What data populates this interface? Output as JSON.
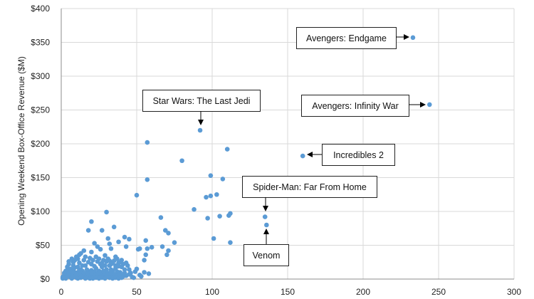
{
  "chart_data": {
    "type": "scatter",
    "title": "",
    "xlabel": "",
    "ylabel": "Opening Weekend Box-Office Revenue ($M)",
    "xlim": [
      0,
      300
    ],
    "ylim": [
      0,
      400
    ],
    "x_ticks": [
      0,
      50,
      100,
      150,
      200,
      250,
      300
    ],
    "y_ticks": [
      0,
      50,
      100,
      150,
      200,
      250,
      300,
      350,
      400
    ],
    "x_tick_labels": [
      "0",
      "50",
      "100",
      "150",
      "200",
      "250",
      "300"
    ],
    "y_tick_labels": [
      "$0",
      "$50",
      "$100",
      "$150",
      "$200",
      "$250",
      "$300",
      "$350",
      "$400"
    ],
    "grid": {
      "horizontal": true,
      "vertical": true
    },
    "point_color": "#5b9bd5",
    "grid_color": "#d9d9d9",
    "annotations": [
      {
        "label": "Avengers: Endgame",
        "x": 233,
        "y": 357
      },
      {
        "label": "Avengers: Infinity War",
        "x": 244,
        "y": 258
      },
      {
        "label": "Star Wars: The Last Jedi",
        "x": 92,
        "y": 220
      },
      {
        "label": "Incredibles 2",
        "x": 160,
        "y": 182
      },
      {
        "label": "Spider-Man: Far From Home",
        "x": 135,
        "y": 92
      },
      {
        "label": "Venom",
        "x": 136,
        "y": 80
      }
    ],
    "series": [
      {
        "points": [
          [
            233,
            357
          ],
          [
            244,
            258
          ],
          [
            92,
            220
          ],
          [
            160,
            182
          ],
          [
            135,
            92
          ],
          [
            136,
            80
          ],
          [
            57,
            202
          ],
          [
            57,
            147
          ],
          [
            80,
            175
          ],
          [
            110,
            192
          ],
          [
            99,
            153
          ],
          [
            107,
            148
          ],
          [
            103,
            125
          ],
          [
            99,
            123
          ],
          [
            96,
            121
          ],
          [
            88,
            103
          ],
          [
            111,
            94
          ],
          [
            105,
            93
          ],
          [
            97,
            90
          ],
          [
            112,
            97
          ],
          [
            101,
            60
          ],
          [
            112,
            54
          ],
          [
            50,
            124
          ],
          [
            66,
            91
          ],
          [
            69,
            72
          ],
          [
            71,
            68
          ],
          [
            75,
            54
          ],
          [
            67,
            48
          ],
          [
            71,
            42
          ],
          [
            70,
            36
          ],
          [
            60,
            47
          ],
          [
            56,
            57
          ],
          [
            57,
            45
          ],
          [
            51,
            44
          ],
          [
            52,
            45
          ],
          [
            56,
            36
          ],
          [
            55,
            28
          ],
          [
            30,
            99
          ],
          [
            27,
            72
          ],
          [
            35,
            77
          ],
          [
            42,
            62
          ],
          [
            45,
            59
          ],
          [
            43,
            48
          ],
          [
            40,
            28
          ],
          [
            45,
            14
          ],
          [
            41,
            4
          ],
          [
            36,
            33
          ],
          [
            37,
            30
          ],
          [
            32,
            52
          ],
          [
            33,
            45
          ],
          [
            29,
            35
          ],
          [
            31,
            60
          ],
          [
            38,
            55
          ],
          [
            20,
            85
          ],
          [
            18,
            72
          ],
          [
            22,
            53
          ],
          [
            24,
            48
          ],
          [
            26,
            44
          ],
          [
            20,
            40
          ],
          [
            15,
            42
          ],
          [
            12,
            36
          ],
          [
            16,
            33
          ],
          [
            11,
            30
          ],
          [
            8,
            25
          ],
          [
            5,
            22
          ],
          [
            9,
            17
          ],
          [
            13,
            14
          ],
          [
            18,
            11
          ],
          [
            23,
            9
          ],
          [
            28,
            7
          ],
          [
            33,
            10
          ],
          [
            38,
            8
          ],
          [
            43,
            5
          ],
          [
            47,
            3
          ],
          [
            2,
            2
          ],
          [
            3,
            5
          ],
          [
            4,
            9
          ],
          [
            5,
            12
          ],
          [
            6,
            3
          ],
          [
            7,
            7
          ],
          [
            8,
            14
          ],
          [
            9,
            6
          ],
          [
            10,
            2
          ],
          [
            11,
            10
          ],
          [
            12,
            4
          ],
          [
            13,
            8
          ],
          [
            14,
            12
          ],
          [
            15,
            3
          ],
          [
            16,
            6
          ],
          [
            17,
            9
          ],
          [
            18,
            2
          ],
          [
            19,
            5
          ],
          [
            20,
            13
          ],
          [
            21,
            4
          ],
          [
            22,
            7
          ],
          [
            23,
            16
          ],
          [
            24,
            3
          ],
          [
            25,
            12
          ],
          [
            26,
            6
          ],
          [
            27,
            18
          ],
          [
            28,
            3
          ],
          [
            29,
            8
          ],
          [
            30,
            14
          ],
          [
            31,
            4
          ],
          [
            32,
            20
          ],
          [
            33,
            6
          ],
          [
            34,
            12
          ],
          [
            35,
            2
          ],
          [
            36,
            16
          ],
          [
            37,
            5
          ],
          [
            38,
            24
          ],
          [
            39,
            10
          ],
          [
            40,
            18
          ],
          [
            41,
            6
          ],
          [
            42,
            14
          ],
          [
            44,
            20
          ],
          [
            46,
            9
          ],
          [
            48,
            2
          ],
          [
            50,
            15
          ],
          [
            52,
            6
          ],
          [
            55,
            10
          ],
          [
            1,
            1
          ],
          [
            2,
            6
          ],
          [
            3,
            12
          ],
          [
            4,
            18
          ],
          [
            5,
            26
          ],
          [
            6,
            15
          ],
          [
            7,
            30
          ],
          [
            8,
            20
          ],
          [
            9,
            28
          ],
          [
            10,
            33
          ],
          [
            11,
            18
          ],
          [
            12,
            24
          ],
          [
            13,
            38
          ],
          [
            14,
            20
          ],
          [
            15,
            28
          ],
          [
            16,
            20
          ],
          [
            17,
            14
          ],
          [
            18,
            25
          ],
          [
            19,
            31
          ],
          [
            20,
            22
          ],
          [
            21,
            28
          ],
          [
            22,
            19
          ],
          [
            23,
            33
          ],
          [
            24,
            26
          ],
          [
            25,
            30
          ],
          [
            26,
            22
          ],
          [
            27,
            24
          ],
          [
            28,
            28
          ],
          [
            29,
            20
          ],
          [
            30,
            26
          ],
          [
            31,
            30
          ],
          [
            32,
            27
          ],
          [
            33,
            22
          ],
          [
            34,
            24
          ],
          [
            35,
            27
          ],
          [
            36,
            20
          ],
          [
            38,
            19
          ],
          [
            39,
            25
          ],
          [
            41,
            22
          ],
          [
            43,
            24
          ],
          [
            1,
            3
          ],
          [
            2,
            9
          ],
          [
            3,
            1
          ],
          [
            4,
            4
          ],
          [
            5,
            8
          ],
          [
            6,
            11
          ],
          [
            7,
            1
          ],
          [
            8,
            4
          ],
          [
            9,
            10
          ],
          [
            10,
            7
          ],
          [
            11,
            1
          ],
          [
            12,
            14
          ],
          [
            13,
            2
          ],
          [
            14,
            5
          ],
          [
            15,
            9
          ],
          [
            16,
            1
          ],
          [
            17,
            4
          ],
          [
            18,
            7
          ],
          [
            19,
            1
          ],
          [
            20,
            9
          ],
          [
            21,
            1
          ],
          [
            22,
            11
          ],
          [
            23,
            2
          ],
          [
            24,
            8
          ],
          [
            25,
            1
          ],
          [
            26,
            10
          ],
          [
            27,
            2
          ],
          [
            28,
            12
          ],
          [
            29,
            1
          ],
          [
            30,
            5
          ],
          [
            31,
            9
          ],
          [
            32,
            2
          ],
          [
            33,
            14
          ],
          [
            34,
            1
          ],
          [
            35,
            7
          ],
          [
            36,
            2
          ],
          [
            37,
            11
          ],
          [
            38,
            1
          ],
          [
            39,
            6
          ],
          [
            40,
            2
          ],
          [
            42,
            9
          ],
          [
            45,
            7
          ],
          [
            49,
            11
          ],
          [
            53,
            4
          ],
          [
            58,
            8
          ]
        ]
      }
    ]
  }
}
